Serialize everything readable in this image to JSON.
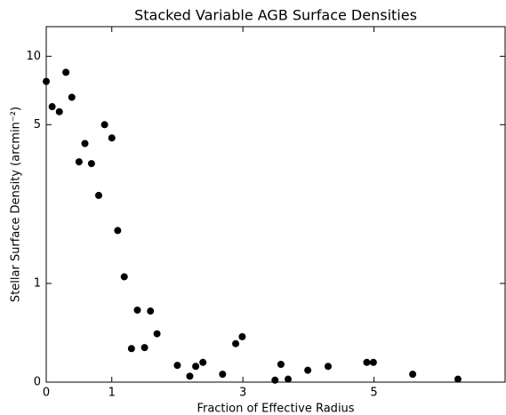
{
  "chart_data": {
    "type": "scatter",
    "title": "Stacked Variable AGB Surface Densities",
    "xlabel": "Fraction of Effective Radius",
    "ylabel": "Stellar Surface Density (arcmin⁻²)",
    "color": "#000000",
    "yscale": "symlog",
    "xlim": [
      0,
      7
    ],
    "ylim": [
      0,
      13.5
    ],
    "xticks": [
      0,
      1,
      3,
      5
    ],
    "yticks": [
      0,
      1,
      5,
      10
    ],
    "x": [
      0,
      0.09,
      0.2,
      0.3,
      0.39,
      0.5,
      0.59,
      0.69,
      0.8,
      0.89,
      1.0,
      1.09,
      1.19,
      1.3,
      1.39,
      1.5,
      1.59,
      1.69,
      2.0,
      2.19,
      2.28,
      2.39,
      2.69,
      2.89,
      2.99,
      3.49,
      3.58,
      3.69,
      3.99,
      4.3,
      4.89,
      4.99,
      5.59,
      6.28
    ],
    "values": [
      7.75,
      6.0,
      5.7,
      8.5,
      6.6,
      3.43,
      4.13,
      3.37,
      2.44,
      5.0,
      4.37,
      1.71,
      1.07,
      0.34,
      0.73,
      0.35,
      0.72,
      0.49,
      0.17,
      0.06,
      0.16,
      0.2,
      0.08,
      0.39,
      0.46,
      0.02,
      0.18,
      0.03,
      0.12,
      0.16,
      0.2,
      0.2,
      0.08,
      0.03
    ]
  }
}
